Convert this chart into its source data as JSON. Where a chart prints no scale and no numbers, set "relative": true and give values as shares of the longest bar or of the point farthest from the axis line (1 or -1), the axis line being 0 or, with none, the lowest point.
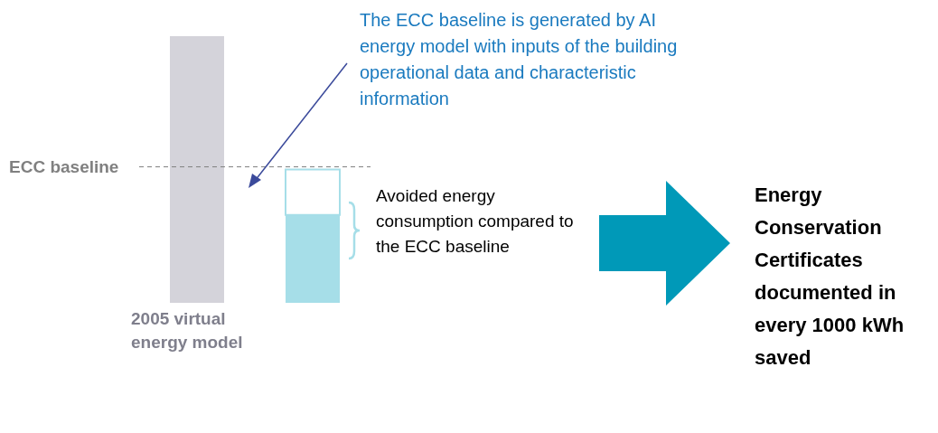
{
  "chart_data": {
    "type": "bar",
    "relative": true,
    "stacked": true,
    "categories": [
      "2005 virtual energy model",
      null
    ],
    "series": [
      {
        "color": "#d4d3da",
        "values": [
          1,
          null
        ]
      },
      {
        "color": "#a6dee8",
        "values": [
          null,
          0.33
        ]
      },
      {
        "color": "#ffffff",
        "values": [
          null,
          0.17
        ]
      }
    ],
    "ref_lines": [
      {
        "axis": "y",
        "value": 0.51,
        "label": "ECC baseline",
        "color": "#808080",
        "line_style": "dashed"
      }
    ],
    "annotations": [
      "The ECC baseline is generated by AI energy model with inputs of the building operational data and characteristic information",
      "Avoided energy consumption compared to the ECC baseline",
      "Energy Conservation Certificates documented in every 1000 kWh saved"
    ]
  }
}
